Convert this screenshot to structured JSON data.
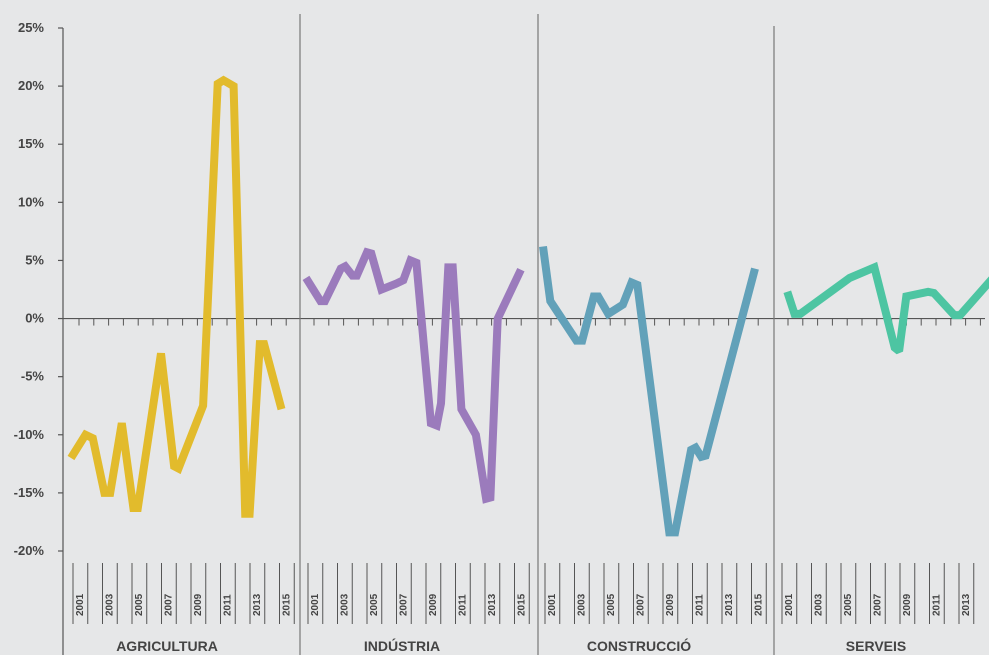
{
  "chart_data": {
    "type": "line",
    "ylim": [
      -20,
      25
    ],
    "y_ticks": [
      {
        "value": 25,
        "label": "25%"
      },
      {
        "value": 20,
        "label": "20%"
      },
      {
        "value": 15,
        "label": "15%"
      },
      {
        "value": 10,
        "label": "10%"
      },
      {
        "value": 5,
        "label": "5%"
      },
      {
        "value": 0,
        "label": "0%"
      },
      {
        "value": -5,
        "label": "-5%"
      },
      {
        "value": -10,
        "label": "-10%"
      },
      {
        "value": -15,
        "label": "-15%"
      },
      {
        "value": -20,
        "label": "-20%"
      }
    ],
    "grid": false,
    "x_tick_labels": [
      "2001",
      "2003",
      "2005",
      "2007",
      "2009",
      "2011",
      "2013",
      "2015"
    ],
    "panels": [
      {
        "label": "AGRICULTURA",
        "color": "#e2bb2c",
        "points": [
          {
            "x": 2000.0,
            "y": -12.0
          },
          {
            "x": 2001.0,
            "y": -10.0
          },
          {
            "x": 2001.5,
            "y": -10.3
          },
          {
            "x": 2002.3,
            "y": -15.0
          },
          {
            "x": 2002.7,
            "y": -15.0
          },
          {
            "x": 2003.5,
            "y": -9.0
          },
          {
            "x": 2004.3,
            "y": -16.3
          },
          {
            "x": 2004.6,
            "y": -16.3
          },
          {
            "x": 2006.2,
            "y": -3.0
          },
          {
            "x": 2007.1,
            "y": -12.7
          },
          {
            "x": 2007.4,
            "y": -12.9
          },
          {
            "x": 2009.1,
            "y": -7.5
          },
          {
            "x": 2010.1,
            "y": 20.2
          },
          {
            "x": 2010.5,
            "y": 20.5
          },
          {
            "x": 2011.2,
            "y": 20.0
          },
          {
            "x": 2012.0,
            "y": -16.8
          },
          {
            "x": 2012.3,
            "y": -16.8
          },
          {
            "x": 2013.0,
            "y": -2.2
          },
          {
            "x": 2013.3,
            "y": -2.2
          },
          {
            "x": 2014.5,
            "y": -7.8
          }
        ]
      },
      {
        "label": "INDÚSTRIA",
        "color": "#9b7bbc",
        "points": [
          {
            "x": 2000.0,
            "y": 3.5
          },
          {
            "x": 2001.0,
            "y": 1.5
          },
          {
            "x": 2001.3,
            "y": 1.5
          },
          {
            "x": 2002.4,
            "y": 4.3
          },
          {
            "x": 2002.7,
            "y": 4.5
          },
          {
            "x": 2003.2,
            "y": 3.7
          },
          {
            "x": 2003.5,
            "y": 3.7
          },
          {
            "x": 2004.2,
            "y": 5.7
          },
          {
            "x": 2004.5,
            "y": 5.6
          },
          {
            "x": 2005.2,
            "y": 2.5
          },
          {
            "x": 2006.2,
            "y": 3.0
          },
          {
            "x": 2006.7,
            "y": 3.3
          },
          {
            "x": 2007.2,
            "y": 5.0
          },
          {
            "x": 2007.6,
            "y": 4.8
          },
          {
            "x": 2008.6,
            "y": -9.0
          },
          {
            "x": 2009.0,
            "y": -9.2
          },
          {
            "x": 2009.3,
            "y": -7.3
          },
          {
            "x": 2009.8,
            "y": 4.4
          },
          {
            "x": 2010.1,
            "y": 4.4
          },
          {
            "x": 2010.7,
            "y": -7.8
          },
          {
            "x": 2011.7,
            "y": -10.0
          },
          {
            "x": 2012.4,
            "y": -15.5
          },
          {
            "x": 2012.7,
            "y": -15.4
          },
          {
            "x": 2013.2,
            "y": 0.0
          },
          {
            "x": 2014.8,
            "y": 4.2
          }
        ]
      },
      {
        "label": "CONSTRUCCIÓ",
        "color": "#62a1b9",
        "points": [
          {
            "x": 2000.0,
            "y": 6.2
          },
          {
            "x": 2000.5,
            "y": 1.5
          },
          {
            "x": 2002.3,
            "y": -1.9
          },
          {
            "x": 2002.7,
            "y": -1.9
          },
          {
            "x": 2003.5,
            "y": 1.9
          },
          {
            "x": 2003.8,
            "y": 1.9
          },
          {
            "x": 2004.5,
            "y": 0.4
          },
          {
            "x": 2005.5,
            "y": 1.2
          },
          {
            "x": 2006.1,
            "y": 3.1
          },
          {
            "x": 2006.5,
            "y": 2.9
          },
          {
            "x": 2008.7,
            "y": -18.4
          },
          {
            "x": 2009.1,
            "y": -18.4
          },
          {
            "x": 2010.2,
            "y": -11.3
          },
          {
            "x": 2010.5,
            "y": -11.1
          },
          {
            "x": 2010.9,
            "y": -11.9
          },
          {
            "x": 2011.2,
            "y": -11.8
          },
          {
            "x": 2014.6,
            "y": 4.3
          }
        ]
      },
      {
        "label": "SERVEIS",
        "color": "#4dc5a2",
        "points": [
          {
            "x": 2000.5,
            "y": 2.3
          },
          {
            "x": 2001.0,
            "y": 0.4
          },
          {
            "x": 2001.4,
            "y": 0.4
          },
          {
            "x": 2004.8,
            "y": 3.5
          },
          {
            "x": 2006.5,
            "y": 4.4
          },
          {
            "x": 2007.9,
            "y": -2.5
          },
          {
            "x": 2008.2,
            "y": -2.8
          },
          {
            "x": 2008.7,
            "y": 1.9
          },
          {
            "x": 2010.2,
            "y": 2.3
          },
          {
            "x": 2010.6,
            "y": 2.2
          },
          {
            "x": 2012.0,
            "y": 0.3
          },
          {
            "x": 2012.4,
            "y": 0.3
          },
          {
            "x": 2014.6,
            "y": 3.4
          }
        ]
      }
    ]
  }
}
